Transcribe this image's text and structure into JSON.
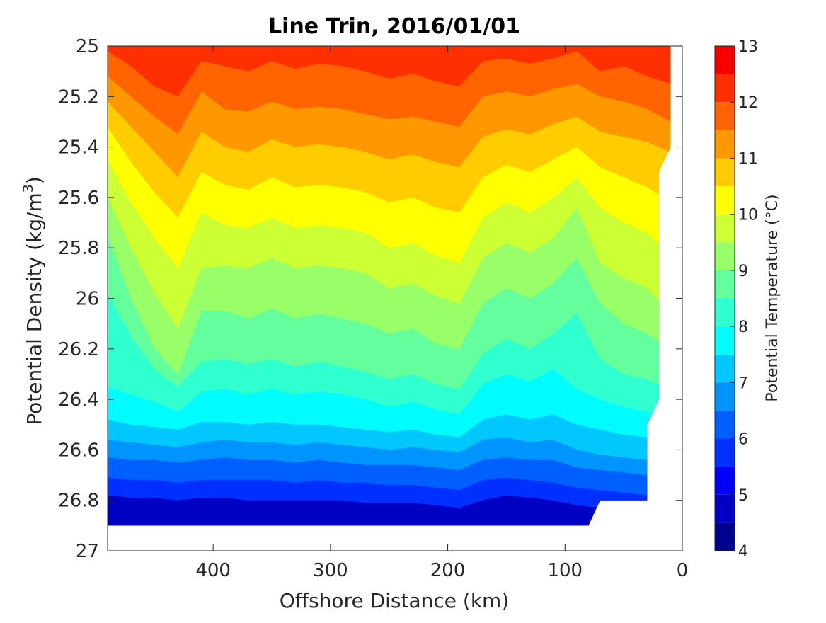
{
  "chart_data": {
    "type": "contourf",
    "title": "Line Trin, 2016/01/01",
    "xlabel": "Offshore Distance (km)",
    "ylabel_parts": [
      "Potential Density (kg/m",
      "3",
      ")"
    ],
    "xlim": [
      490,
      0
    ],
    "ylim": [
      25,
      27
    ],
    "x_reversed": true,
    "y_reversed": true,
    "xticks": [
      400,
      300,
      200,
      100,
      0
    ],
    "yticks": [
      "25",
      "25.2",
      "25.4",
      "25.6",
      "25.8",
      "26",
      "26.2",
      "26.4",
      "26.6",
      "26.8",
      "27"
    ],
    "ytick_values": [
      25,
      25.2,
      25.4,
      25.6,
      25.8,
      26,
      26.2,
      26.4,
      26.6,
      26.8,
      27
    ],
    "colorbar": {
      "label": "Potential Temperature (°C)",
      "range": [
        4,
        13
      ],
      "ticks": [
        4,
        5,
        6,
        7,
        8,
        9,
        10,
        11,
        12,
        13
      ],
      "levels": [
        4,
        4.5,
        5,
        5.5,
        6,
        6.5,
        7,
        7.5,
        8,
        8.5,
        9,
        9.5,
        10,
        10.5,
        11,
        11.5,
        12,
        12.5,
        13
      ],
      "colors": [
        "#00008f",
        "#0000c4",
        "#0000f8",
        "#0030ff",
        "#0060ff",
        "#0094ff",
        "#00c8ff",
        "#00fcff",
        "#30ffcf",
        "#64ff9c",
        "#98ff68",
        "#ccff34",
        "#ffff00",
        "#ffcc00",
        "#ff9800",
        "#ff6400",
        "#ff3000",
        "#f80000",
        "#c40000",
        "#8f0000"
      ]
    },
    "section_x": [
      490,
      470,
      450,
      430,
      410,
      390,
      370,
      350,
      330,
      310,
      290,
      270,
      250,
      230,
      210,
      190,
      170,
      150,
      130,
      110,
      90,
      70,
      50,
      30,
      10
    ],
    "isopycnals_of_temperature": [
      {
        "temp": 12,
        "sigma": [
          25.02,
          25.08,
          25.16,
          25.2,
          25.06,
          25.08,
          25.1,
          25.06,
          25.09,
          25.07,
          25.08,
          25.1,
          25.13,
          25.11,
          25.14,
          25.16,
          25.06,
          25.05,
          25.07,
          25.05,
          25.02,
          25.1,
          25.08,
          25.12,
          25.15
        ]
      },
      {
        "temp": 11.5,
        "sigma": [
          25.12,
          25.2,
          25.28,
          25.35,
          25.18,
          25.25,
          25.26,
          25.22,
          25.25,
          25.24,
          25.25,
          25.27,
          25.29,
          25.28,
          25.3,
          25.32,
          25.2,
          25.18,
          25.2,
          25.17,
          25.15,
          25.2,
          25.22,
          25.25,
          25.3
        ]
      },
      {
        "temp": 11,
        "sigma": [
          25.22,
          25.32,
          25.42,
          25.52,
          25.34,
          25.4,
          25.42,
          25.37,
          25.4,
          25.39,
          25.4,
          25.42,
          25.45,
          25.43,
          25.46,
          25.48,
          25.36,
          25.33,
          25.35,
          25.31,
          25.28,
          25.34,
          25.36,
          25.38,
          25.42
        ]
      },
      {
        "temp": 10.5,
        "sigma": [
          25.32,
          25.46,
          25.58,
          25.68,
          25.5,
          25.55,
          25.57,
          25.52,
          25.56,
          25.55,
          25.56,
          25.58,
          25.62,
          25.6,
          25.64,
          25.66,
          25.52,
          25.47,
          25.5,
          25.45,
          25.4,
          25.48,
          25.52,
          25.56,
          25.62
        ]
      },
      {
        "temp": 10,
        "sigma": [
          25.45,
          25.62,
          25.76,
          25.88,
          25.66,
          25.71,
          25.72,
          25.68,
          25.72,
          25.71,
          25.72,
          25.74,
          25.8,
          25.78,
          25.83,
          25.86,
          25.68,
          25.62,
          25.66,
          25.6,
          25.52,
          25.64,
          25.7,
          25.74,
          25.82
        ]
      },
      {
        "temp": 9.5,
        "sigma": [
          25.6,
          25.8,
          25.98,
          26.12,
          25.88,
          25.87,
          25.88,
          25.84,
          25.88,
          25.87,
          25.88,
          25.9,
          25.96,
          25.94,
          25.99,
          26.02,
          25.84,
          25.78,
          25.82,
          25.76,
          25.64,
          25.86,
          25.92,
          25.96,
          26.06
        ]
      },
      {
        "temp": 9,
        "sigma": [
          25.75,
          26.0,
          26.2,
          26.3,
          26.05,
          26.05,
          26.08,
          26.04,
          26.08,
          26.06,
          26.08,
          26.1,
          26.14,
          26.12,
          26.18,
          26.2,
          26.02,
          25.96,
          26.0,
          25.94,
          25.84,
          26.02,
          26.1,
          26.14,
          26.2
        ]
      },
      {
        "temp": 8.5,
        "sigma": [
          25.98,
          26.15,
          26.28,
          26.35,
          26.25,
          26.24,
          26.26,
          26.24,
          26.27,
          26.25,
          26.27,
          26.29,
          26.32,
          26.3,
          26.34,
          26.36,
          26.22,
          26.16,
          26.2,
          26.14,
          26.06,
          26.24,
          26.3,
          26.32,
          26.36
        ]
      },
      {
        "temp": 8,
        "sigma": [
          26.35,
          26.38,
          26.41,
          26.45,
          26.37,
          26.36,
          26.38,
          26.36,
          26.38,
          26.37,
          26.38,
          26.4,
          26.43,
          26.41,
          26.44,
          26.46,
          26.34,
          26.3,
          26.33,
          26.28,
          26.36,
          26.4,
          26.43,
          26.45,
          26.5
        ]
      },
      {
        "temp": 7.5,
        "sigma": [
          26.48,
          26.5,
          26.51,
          26.52,
          26.49,
          26.49,
          26.5,
          26.49,
          26.5,
          26.5,
          26.51,
          26.52,
          26.53,
          26.52,
          26.54,
          26.55,
          26.48,
          26.46,
          26.48,
          26.46,
          26.5,
          26.52,
          26.54,
          26.55,
          26.58
        ]
      },
      {
        "temp": 7,
        "sigma": [
          26.56,
          26.57,
          26.58,
          26.59,
          26.57,
          26.56,
          26.57,
          26.57,
          26.58,
          26.57,
          26.58,
          26.59,
          26.6,
          26.59,
          26.6,
          26.61,
          26.56,
          26.55,
          26.57,
          26.56,
          26.6,
          26.62,
          26.63,
          26.64,
          26.66
        ]
      },
      {
        "temp": 6.5,
        "sigma": [
          26.63,
          26.64,
          26.64,
          26.65,
          26.64,
          26.63,
          26.64,
          26.64,
          26.65,
          26.64,
          26.65,
          26.66,
          26.66,
          26.66,
          26.67,
          26.68,
          26.64,
          26.63,
          26.64,
          26.64,
          26.67,
          26.68,
          26.69,
          26.7,
          26.72
        ]
      },
      {
        "temp": 6,
        "sigma": [
          26.71,
          26.72,
          26.72,
          26.73,
          26.72,
          26.72,
          26.72,
          26.72,
          26.73,
          26.72,
          26.73,
          26.73,
          26.74,
          26.74,
          26.75,
          26.76,
          26.72,
          26.71,
          26.72,
          26.73,
          26.75,
          26.76,
          26.77,
          26.78,
          26.8
        ]
      },
      {
        "temp": 5.5,
        "sigma": [
          26.78,
          26.79,
          26.79,
          26.8,
          26.79,
          26.79,
          26.8,
          26.8,
          26.8,
          26.8,
          26.8,
          26.81,
          26.81,
          26.81,
          26.82,
          26.83,
          26.8,
          26.78,
          26.79,
          26.8,
          26.82,
          26.83,
          26.84,
          26.85,
          26.86
        ]
      }
    ],
    "data_bottom_sigma": [
      26.9,
      26.9,
      26.9,
      26.9,
      26.9,
      26.9,
      26.9,
      26.9,
      26.9,
      26.9,
      26.9,
      26.9,
      26.9,
      26.9,
      26.9,
      26.9,
      26.9,
      26.9,
      26.9,
      26.9,
      26.9,
      26.8,
      26.8,
      26.8,
      26.8
    ],
    "data_edge_x": [
      {
        "sigma": 25.0,
        "x": 10
      },
      {
        "sigma": 25.4,
        "x": 10
      },
      {
        "sigma": 25.5,
        "x": 20
      },
      {
        "sigma": 26.4,
        "x": 20
      },
      {
        "sigma": 26.5,
        "x": 30
      },
      {
        "sigma": 26.8,
        "x": 30
      },
      {
        "sigma": 26.8,
        "x": 70
      },
      {
        "sigma": 26.9,
        "x": 80
      }
    ],
    "blank_below_sigma": 26.9
  }
}
